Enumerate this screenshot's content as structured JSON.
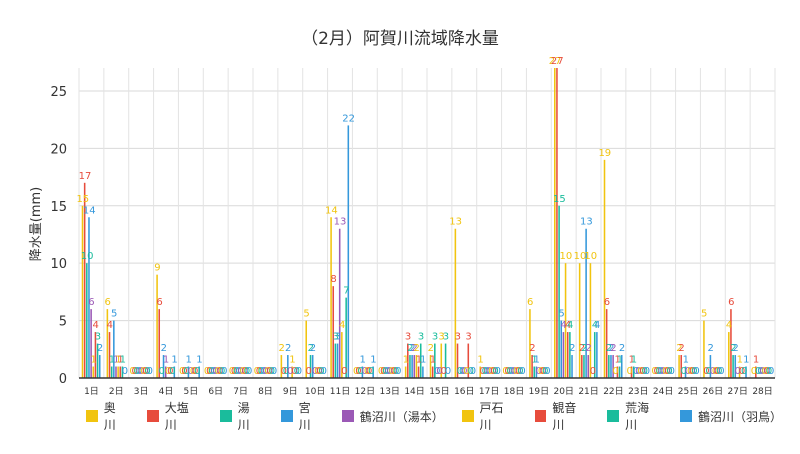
{
  "chart_data": {
    "type": "bar",
    "title": "（2月）阿賀川流域降水量",
    "xlabel": "",
    "ylabel": "降水量(mm)",
    "ylim": [
      0,
      27
    ],
    "yticks": [
      0,
      5,
      10,
      15,
      20,
      25
    ],
    "grid": true,
    "legend_position": "bottom",
    "categories": [
      "1日",
      "2日",
      "3日",
      "4日",
      "5日",
      "6日",
      "7日",
      "8日",
      "9日",
      "10日",
      "11日",
      "12日",
      "13日",
      "14日",
      "15日",
      "16日",
      "17日",
      "18日",
      "19日",
      "20日",
      "21日",
      "22日",
      "23日",
      "24日",
      "25日",
      "26日",
      "27日",
      "28日"
    ],
    "series": [
      {
        "name": "奥川",
        "color": "#f1c40f",
        "values": [
          15,
          6,
          0,
          9,
          0,
          0,
          0,
          0,
          2,
          5,
          14,
          0,
          0,
          1,
          2,
          13,
          1,
          0,
          6,
          27,
          10,
          19,
          0,
          0,
          2,
          5,
          4,
          0
        ]
      },
      {
        "name": "大塩川",
        "color": "#e74c3c",
        "values": [
          17,
          4,
          0,
          6,
          0,
          0,
          0,
          0,
          0,
          0,
          8,
          0,
          0,
          3,
          1,
          3,
          0,
          0,
          2,
          27,
          2,
          6,
          1,
          0,
          2,
          0,
          6,
          1
        ]
      },
      {
        "name": "湯川",
        "color": "#1abc9c",
        "values": [
          10,
          1,
          0,
          0,
          0,
          0,
          0,
          0,
          0,
          2,
          3,
          0,
          0,
          2,
          3,
          0,
          0,
          0,
          1,
          15,
          2,
          2,
          1,
          0,
          0,
          0,
          2,
          0
        ]
      },
      {
        "name": "宮川",
        "color": "#3498db",
        "values": [
          14,
          5,
          0,
          2,
          1,
          0,
          0,
          0,
          2,
          2,
          3,
          1,
          0,
          2,
          0,
          0,
          0,
          0,
          1,
          5,
          13,
          2,
          0,
          0,
          1,
          2,
          2,
          0
        ]
      },
      {
        "name": "鶴沼川（湯本）",
        "color": "#9b59b6",
        "values": [
          6,
          1,
          0,
          1,
          0,
          0,
          0,
          0,
          0,
          0,
          13,
          0,
          0,
          2,
          0,
          0,
          0,
          0,
          0,
          4,
          2,
          2,
          0,
          0,
          0,
          0,
          0,
          0
        ]
      },
      {
        "name": "戸石川",
        "color": "#f1c40f",
        "values": [
          1,
          1,
          0,
          0,
          0,
          0,
          0,
          0,
          1,
          0,
          4,
          0,
          0,
          2,
          3,
          0,
          0,
          0,
          0,
          10,
          10,
          0,
          0,
          0,
          0,
          0,
          1,
          0
        ]
      },
      {
        "name": "観音川",
        "color": "#e74c3c",
        "values": [
          4,
          1,
          0,
          0,
          0,
          0,
          0,
          0,
          0,
          0,
          0,
          0,
          0,
          1,
          0,
          3,
          0,
          0,
          0,
          4,
          0,
          1,
          0,
          0,
          0,
          0,
          0,
          0
        ]
      },
      {
        "name": "荒海川",
        "color": "#1abc9c",
        "values": [
          3,
          1,
          0,
          0,
          0,
          0,
          0,
          0,
          0,
          0,
          7,
          0,
          0,
          3,
          3,
          0,
          0,
          0,
          0,
          4,
          4,
          1,
          0,
          0,
          0,
          0,
          0,
          0
        ]
      },
      {
        "name": "鶴沼川（羽鳥）",
        "color": "#3498db",
        "values": [
          2,
          0,
          0,
          1,
          1,
          0,
          0,
          0,
          0,
          0,
          22,
          1,
          0,
          1,
          0,
          0,
          0,
          0,
          0,
          2,
          4,
          2,
          0,
          0,
          0,
          0,
          1,
          0
        ]
      }
    ]
  }
}
